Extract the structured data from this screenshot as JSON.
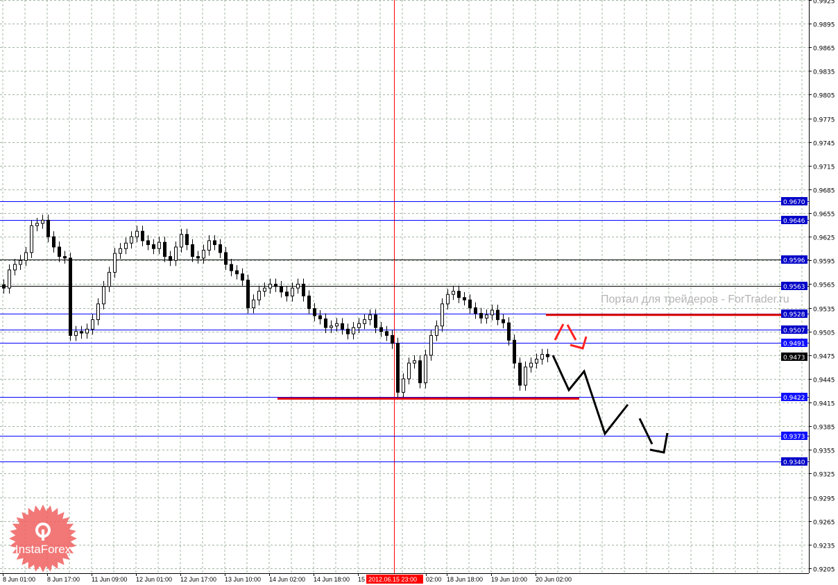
{
  "chart_data": {
    "type": "candlestick",
    "symbol_note": "",
    "y_axis": {
      "ticks": [
        "0.9925",
        "0.9895",
        "0.9865",
        "0.9835",
        "0.9805",
        "0.9775",
        "0.9745",
        "0.9715",
        "0.9685",
        "0.9655",
        "0.9625",
        "0.9595",
        "0.9565",
        "0.9535",
        "0.9505",
        "0.9475",
        "0.9445",
        "0.9415",
        "0.9385",
        "0.9355",
        "0.9325",
        "0.9295",
        "0.9265",
        "0.9235",
        "0.9205"
      ],
      "range": [
        0.92,
        0.9925
      ]
    },
    "x_axis": {
      "ticks": [
        "8 Jun 01:00",
        "8 Jun 17:00",
        "11 Jun 09:00",
        "12 Jun 01:00",
        "12 Jun 17:00",
        "13 Jun 10:00",
        "14 Jun 02:00",
        "14 Jun 18:00",
        "15",
        "02:00",
        "18 Jun 18:00",
        "19 Jun 10:00",
        "20 Jun 02:00"
      ],
      "cursor_label": "2012.06.15 23:00"
    },
    "closes": [
      0.956,
      0.9583,
      0.959,
      0.9595,
      0.9605,
      0.9639,
      0.9642,
      0.9646,
      0.9625,
      0.9612,
      0.96,
      0.9598,
      0.95,
      0.9505,
      0.9503,
      0.9508,
      0.952,
      0.954,
      0.9562,
      0.958,
      0.9604,
      0.961,
      0.9617,
      0.9625,
      0.9632,
      0.962,
      0.9615,
      0.961,
      0.9618,
      0.96,
      0.9595,
      0.9612,
      0.9628,
      0.9615,
      0.96,
      0.9598,
      0.9608,
      0.962,
      0.9615,
      0.9605,
      0.959,
      0.9582,
      0.9578,
      0.957,
      0.9535,
      0.9545,
      0.9556,
      0.956,
      0.9565,
      0.9562,
      0.9555,
      0.955,
      0.956,
      0.9565,
      0.955,
      0.9534,
      0.9525,
      0.9521,
      0.951,
      0.9512,
      0.9515,
      0.9508,
      0.9502,
      0.951,
      0.9515,
      0.952,
      0.9526,
      0.951,
      0.9505,
      0.95,
      0.949,
      0.9428,
      0.9445,
      0.9465,
      0.9468,
      0.944,
      0.9475,
      0.95,
      0.9512,
      0.954,
      0.9552,
      0.9556,
      0.9548,
      0.9545,
      0.9535,
      0.9528,
      0.9522,
      0.9526,
      0.9532,
      0.952,
      0.9516,
      0.9494,
      0.9465,
      0.9437,
      0.946,
      0.9465,
      0.947,
      0.9476,
      0.9473
    ],
    "levels": [
      {
        "price": "0.9670",
        "line": "#0000ff",
        "label_bg": "#0000c8"
      },
      {
        "price": "0.9646",
        "line": "#0000ff",
        "label_bg": "#0000c8"
      },
      {
        "price": "0.9596",
        "line": "#000000",
        "label_bg": "#0000c8"
      },
      {
        "price": "0.9563",
        "line": "#000000",
        "label_bg": "#0000c8"
      },
      {
        "price": "0.9528",
        "line": "#0000ff",
        "label_bg": "#0000c8"
      },
      {
        "price": "0.9507",
        "line": "#0000ff",
        "label_bg": "#0000c8"
      },
      {
        "price": "0.9491",
        "line": "#0000ff",
        "label_bg": "#1010ff"
      },
      {
        "price": "0.9422",
        "line": "#0000ff",
        "label_bg": "#1010ff"
      },
      {
        "price": "0.9373",
        "line": "#0000ff",
        "label_bg": "#1010ff"
      },
      {
        "price": "0.9340",
        "line": "#0000ff",
        "label_bg": "#0000c8"
      }
    ],
    "current_price": "0.9473",
    "support_resistance": [
      0.9526,
      0.942
    ],
    "colors": {
      "grid": "#a0b4a0",
      "candle": "#000000",
      "levels": "#0000ff",
      "marks": "#ff0000"
    }
  },
  "watermark": "Портал для трейдеров - ForTrader.ru",
  "logo": "InstaForex"
}
